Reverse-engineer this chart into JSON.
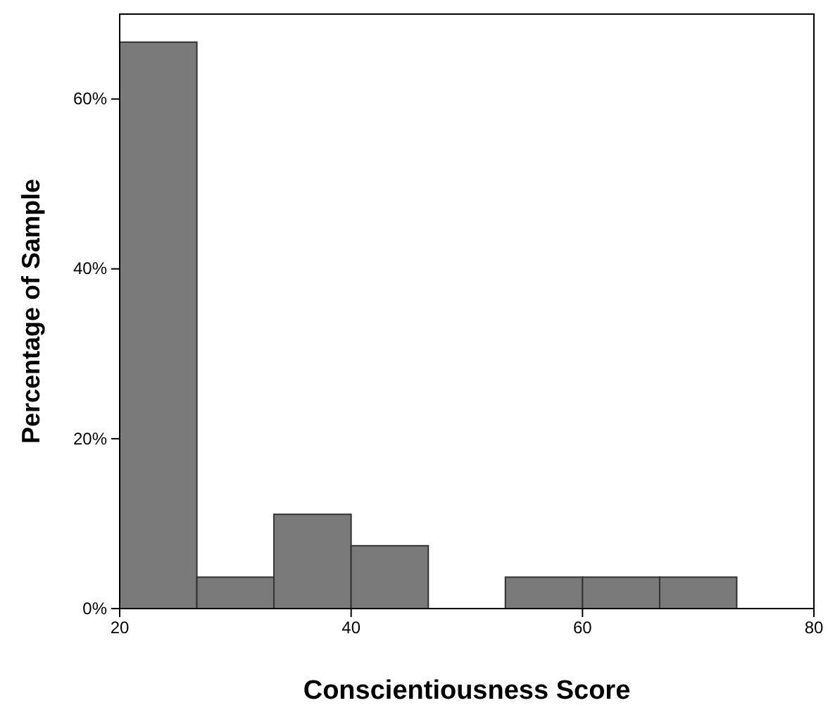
{
  "chart_data": {
    "type": "histogram",
    "xlabel": "Conscientiousness Score",
    "ylabel": "Percentage of Sample",
    "bins": [
      20,
      26.67,
      33.33,
      40,
      46.67,
      53.33,
      60,
      66.67,
      73.33
    ],
    "values": [
      66.7,
      3.7,
      11.1,
      7.4,
      0,
      3.7,
      3.7,
      3.7
    ],
    "color": "#7a7a7a",
    "xlim": [
      20,
      80
    ],
    "xticks": [
      20,
      40,
      60,
      80
    ],
    "ylim": [
      0,
      70
    ],
    "yticks": [
      {
        "value": 0,
        "label": "0%"
      },
      {
        "value": 20,
        "label": "20%"
      },
      {
        "value": 40,
        "label": "40%"
      },
      {
        "value": 60,
        "label": "60%"
      }
    ],
    "grid": false
  }
}
